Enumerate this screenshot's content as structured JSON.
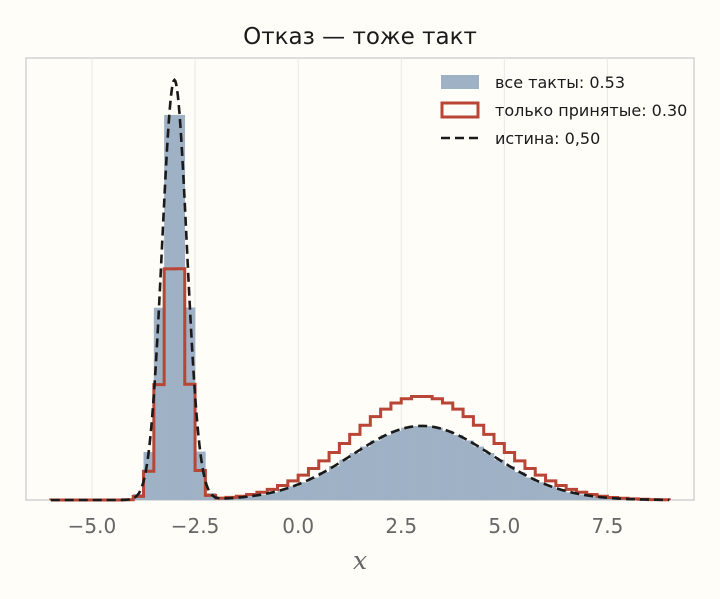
{
  "chart_data": {
    "type": "histogram",
    "title": "Отказ — тоже такт",
    "xlabel": "x",
    "ylabel": "",
    "xlim": [
      -6.6,
      9.6
    ],
    "ylim": [
      0,
      0.7
    ],
    "xticks": [
      -5.0,
      -2.5,
      0.0,
      2.5,
      5.0,
      7.5
    ],
    "xtick_labels": [
      "−5.0",
      "−2.5",
      "0.0",
      "2.5",
      "5.0",
      "7.5"
    ],
    "grid": true,
    "legend_position": "top-right",
    "bins": {
      "start": -6.0,
      "end": 9.0,
      "width": 0.25
    },
    "series": [
      {
        "name": "все такты: 0.53",
        "kind": "filled-histogram",
        "color": "#9eb1c5",
        "params": {
          "modes": [
            {
              "mu": -3.0,
              "sigma": 0.3,
              "weight": 0.5
            },
            {
              "mu": 3.0,
              "sigma": 1.7,
              "weight": 0.5
            }
          ]
        }
      },
      {
        "name": "только принятые: 0.30",
        "kind": "step-histogram",
        "color": "#b84535",
        "params": {
          "modes": [
            {
              "mu": -3.0,
              "sigma": 0.3,
              "weight": 0.3
            },
            {
              "mu": 3.0,
              "sigma": 1.7,
              "weight": 0.7
            }
          ]
        }
      },
      {
        "name": "истина: 0,50",
        "kind": "density-line",
        "color": "#1a1a1a",
        "params": {
          "modes": [
            {
              "mu": -3.0,
              "sigma": 0.3,
              "weight": 0.5
            },
            {
              "mu": 3.0,
              "sigma": 1.7,
              "weight": 0.5
            }
          ]
        }
      }
    ]
  }
}
